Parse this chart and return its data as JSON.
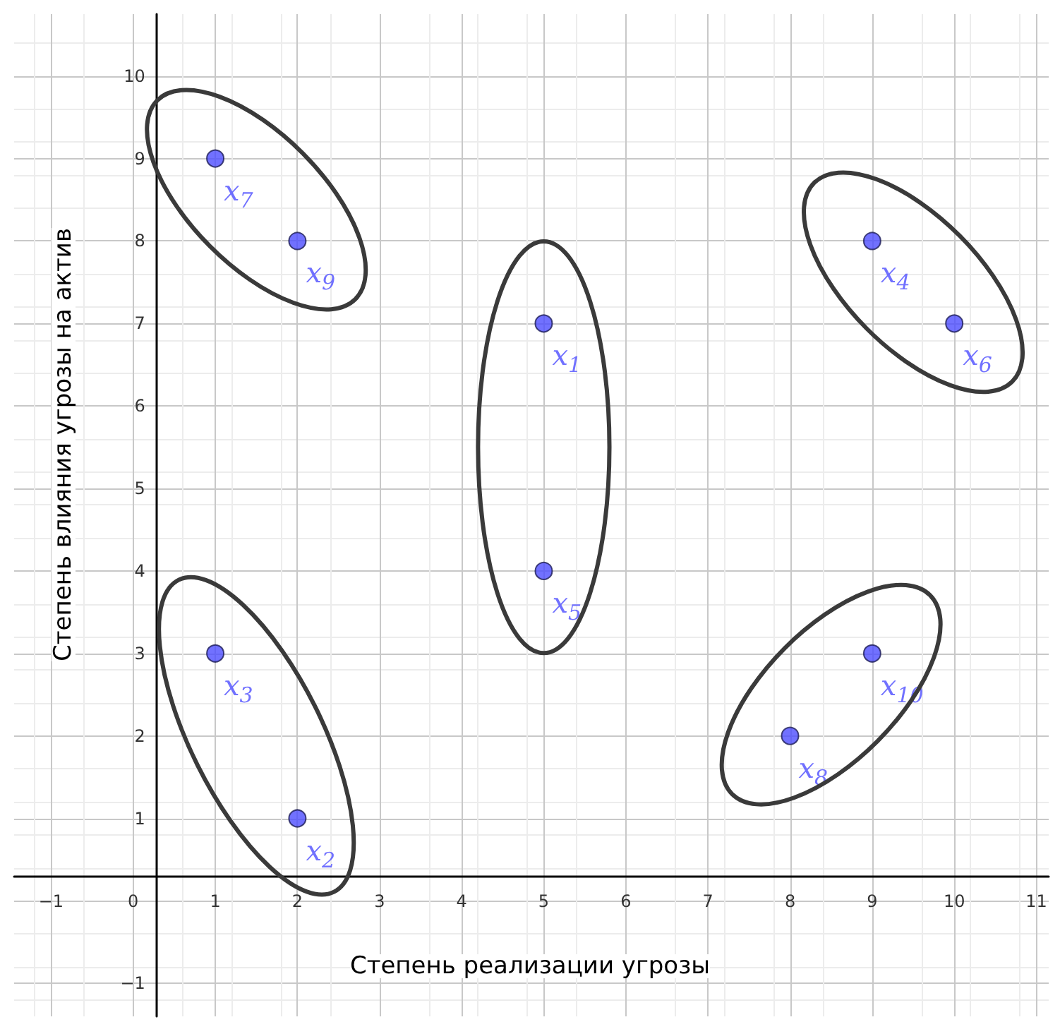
{
  "chart_data": {
    "type": "scatter",
    "xlabel": "Степень реализации угрозы",
    "ylabel": "Степень влияния угрозы на актив",
    "x": [
      5,
      2,
      1,
      9,
      5,
      10,
      1,
      8,
      2,
      9
    ],
    "values": [
      7,
      1,
      3,
      8,
      4,
      7,
      9,
      2,
      8,
      3
    ],
    "annotations": [
      {
        "text": "x$_{1}$",
        "x": 5,
        "y": 7
      },
      {
        "text": "x$_{2}$",
        "x": 2,
        "y": 1
      },
      {
        "text": "x$_{3}$",
        "x": 1,
        "y": 3
      },
      {
        "text": "x$_{4}$",
        "x": 9,
        "y": 8
      },
      {
        "text": "x$_{5}$",
        "x": 5,
        "y": 4
      },
      {
        "text": "x$_{6}$",
        "x": 10,
        "y": 7
      },
      {
        "text": "x$_{7}$",
        "x": 1,
        "y": 9
      },
      {
        "text": "x$_{8}$",
        "x": 8,
        "y": 2
      },
      {
        "text": "x$_{9}$",
        "x": 2,
        "y": 8
      },
      {
        "text": "x$_{10}$",
        "x": 9,
        "y": 3
      }
    ],
    "color": "#4d4dff",
    "marker": "circle",
    "grid": true,
    "xlim": [
      -1.45,
      11.15
    ],
    "ylim": [
      -1.4,
      10.75
    ],
    "xticks": [
      {
        "value": -1,
        "label": "−1"
      },
      0,
      1,
      2,
      3,
      4,
      5,
      6,
      7,
      8,
      9,
      10,
      11
    ],
    "yticks": [
      {
        "value": -1,
        "label": "−1"
      },
      {
        "value": 0,
        "label": null
      },
      1,
      2,
      3,
      4,
      5,
      6,
      7,
      8,
      9,
      10
    ]
  }
}
